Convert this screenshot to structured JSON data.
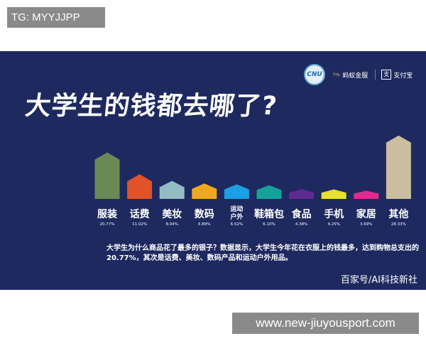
{
  "watermark_top": "TG: MYYJJPP",
  "watermark_bottom": "www.new-jiuyousport.com",
  "logos": {
    "ant": "蚂蚁金服",
    "alipay": "支付宝",
    "ali_mark": "支",
    "circle": "CNU"
  },
  "description": "大学生为什么商品花了最多的银子？数据显示，大学生今年花在衣服上的钱最多，达到购物总支出的20.77%，其次是话费、美妆、数码产品和运动户外用品。",
  "source": "百家号/AI科技新社",
  "chart_data": {
    "type": "bar",
    "title": "大学生的钱都去哪了?",
    "categories": [
      "服装",
      "话费",
      "美妆",
      "数码",
      "运动户外",
      "鞋箱包",
      "食品",
      "手机",
      "家居",
      "其他"
    ],
    "values": [
      20.77,
      11.02,
      8.04,
      6.89,
      6.52,
      6.1,
      4.38,
      4.25,
      3.69,
      28.33
    ],
    "value_labels": [
      "20.77%",
      "11.02%",
      "8.04%",
      "6.89%",
      "6.52%",
      "6.10%",
      "4.38%",
      "4.25%",
      "3.69%",
      "28.33%"
    ],
    "colors": [
      "#6a8a55",
      "#e0522a",
      "#93bcc4",
      "#f0a820",
      "#1ba0e4",
      "#14a39a",
      "#5e2a90",
      "#e6e22a",
      "#e32a8a",
      "#cbbd9f"
    ],
    "ylim": [
      0,
      30
    ],
    "grid": false,
    "legend": "none"
  }
}
